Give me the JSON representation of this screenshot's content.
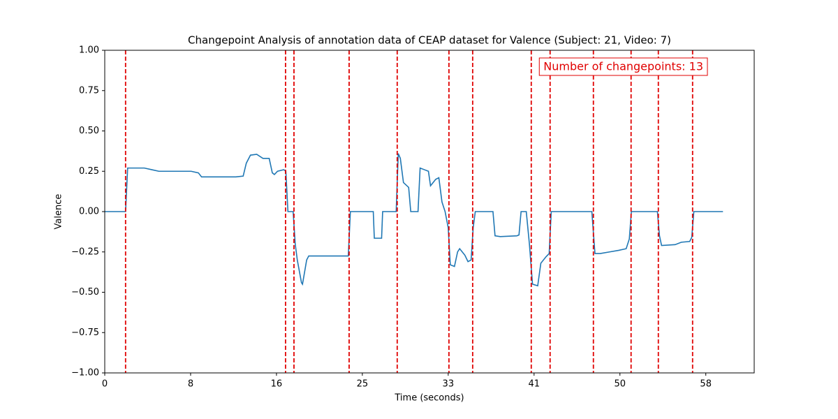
{
  "chart_data": {
    "type": "line",
    "title": "Changepoint Analysis of annotation data of CEAP dataset for Valence (Subject: 21, Video: 7)",
    "xlabel": "Time (seconds)",
    "ylabel": "Valence",
    "annotation": "Number of changepoints: 13",
    "annotation_color": "#e00000",
    "x": [
      0,
      2.0,
      2.2,
      3.8,
      4.5,
      5.2,
      8.3,
      9.0,
      9.3,
      12.6,
      13.3,
      13.6,
      14.0,
      14.6,
      15.2,
      15.8,
      16.1,
      16.3,
      16.6,
      17.2,
      17.4,
      17.6,
      18.1,
      18.3,
      18.5,
      18.9,
      19.0,
      19.4,
      19.6,
      23.4,
      23.6,
      25.8,
      25.9,
      26.6,
      26.7,
      28.0,
      28.2,
      28.4,
      28.7,
      29.2,
      29.4,
      30.1,
      30.3,
      30.7,
      31.1,
      31.3,
      31.8,
      32.1,
      32.4,
      32.7,
      33.0,
      33.2,
      33.6,
      33.9,
      34.1,
      34.6,
      34.9,
      35.2,
      35.4,
      35.6,
      37.3,
      37.5,
      38.0,
      39.6,
      39.8,
      40.0,
      40.5,
      40.8,
      41.1,
      41.6,
      41.9,
      42.4,
      42.7,
      42.9,
      46.8,
      47.1,
      47.6,
      48.5,
      49.4,
      50.1,
      50.4,
      50.6,
      53.1,
      53.3,
      53.5,
      54.8,
      55.4,
      56.2,
      56.4,
      56.6,
      59.4
    ],
    "series": [
      {
        "name": "Valence",
        "color": "#1f77b4",
        "values": [
          0,
          0,
          0.27,
          0.27,
          0.26,
          0.25,
          0.25,
          0.24,
          0.215,
          0.215,
          0.22,
          0.3,
          0.35,
          0.355,
          0.33,
          0.33,
          0.24,
          0.23,
          0.25,
          0.26,
          0.25,
          0,
          0,
          -0.2,
          -0.3,
          -0.44,
          -0.45,
          -0.3,
          -0.275,
          -0.275,
          0,
          0,
          -0.165,
          -0.165,
          0,
          0,
          0.36,
          0.33,
          0.18,
          0.15,
          0,
          0,
          0.27,
          0.26,
          0.25,
          0.16,
          0.2,
          0.21,
          0.06,
          0,
          -0.1,
          -0.33,
          -0.34,
          -0.25,
          -0.23,
          -0.27,
          -0.31,
          -0.3,
          -0.1,
          0,
          0,
          -0.15,
          -0.155,
          -0.15,
          -0.145,
          0,
          0,
          -0.2,
          -0.45,
          -0.46,
          -0.32,
          -0.28,
          -0.26,
          0,
          0,
          -0.26,
          -0.26,
          -0.25,
          -0.24,
          -0.23,
          -0.17,
          0,
          0,
          -0.15,
          -0.21,
          -0.205,
          -0.19,
          -0.185,
          -0.16,
          0,
          0
        ]
      }
    ],
    "changepoints": [
      2.0,
      17.37,
      18.18,
      23.48,
      28.1,
      33.07,
      35.35,
      40.98,
      42.79,
      46.95,
      50.57,
      53.19,
      56.48
    ],
    "changepoint_color": "#e00000",
    "xlim": [
      0,
      62.4
    ],
    "ylim": [
      -1,
      1
    ],
    "xticks": [
      0,
      {
        "value": 8.25,
        "label": "8"
      },
      {
        "value": 16.5,
        "label": "16"
      },
      {
        "value": 24.75,
        "label": "25"
      },
      33,
      {
        "value": 41.25,
        "label": "41"
      },
      {
        "value": 49.5,
        "label": "50"
      },
      {
        "value": 57.75,
        "label": "58"
      }
    ],
    "yticks": [
      {
        "value": -1,
        "label": "−1.00"
      },
      {
        "value": -0.75,
        "label": "−0.75"
      },
      {
        "value": -0.5,
        "label": "−0.50"
      },
      {
        "value": -0.25,
        "label": "−0.25"
      },
      {
        "value": 0,
        "label": "0.00"
      },
      {
        "value": 0.25,
        "label": "0.25"
      },
      {
        "value": 0.5,
        "label": "0.50"
      },
      {
        "value": 0.75,
        "label": "0.75"
      },
      {
        "value": 1,
        "label": "1.00"
      }
    ]
  }
}
